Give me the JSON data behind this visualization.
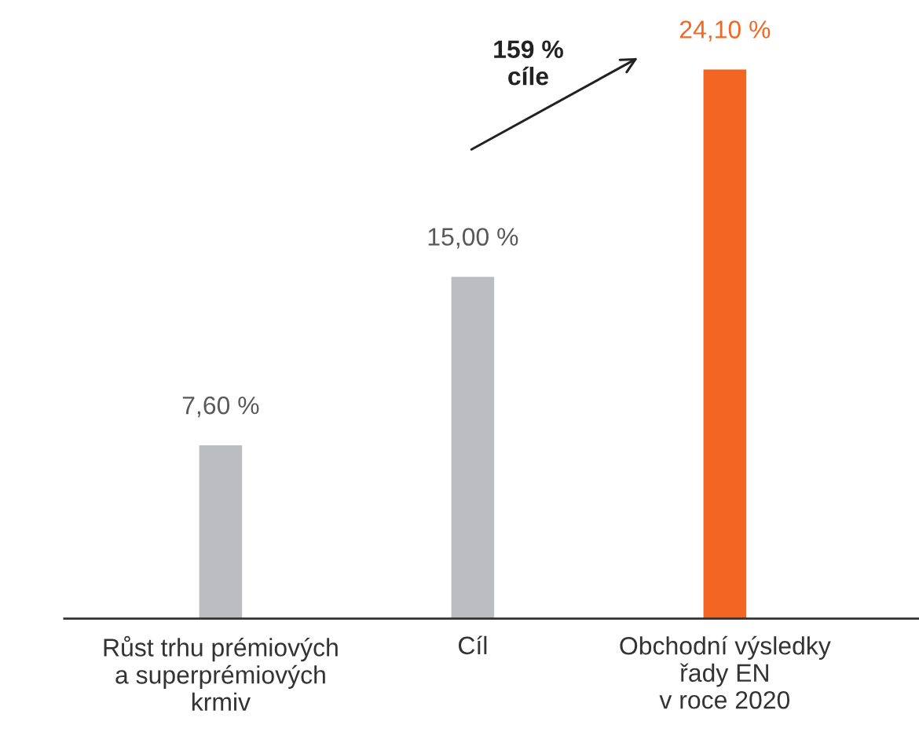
{
  "chart_data": {
    "type": "bar",
    "categories": [
      "Růst trhu prémiových\na superprémiových\nkrmiv",
      "Cíl",
      "Obchodní výsledky\nřady EN\nv roce 2020"
    ],
    "values": [
      7.6,
      15.0,
      24.1
    ],
    "colors": [
      "#bcbdc0",
      "#bcbdc0",
      "#f26522"
    ],
    "value_labels": [
      "7,60 %",
      "15,00 %",
      "24,10 %"
    ],
    "annotations": [
      "159 %\ncíle"
    ],
    "tick_labels": "x",
    "grid": false,
    "legend": false
  }
}
